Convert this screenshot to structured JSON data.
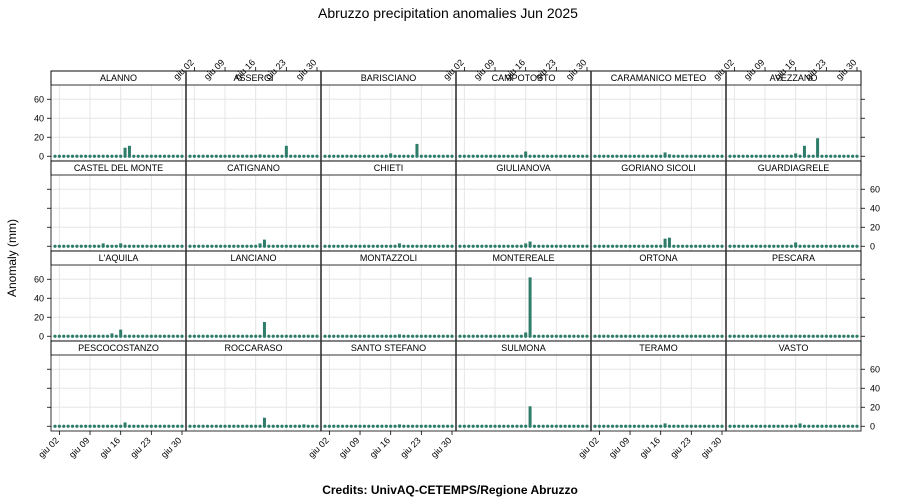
{
  "chart_data": {
    "type": "bar",
    "title": "Abruzzo precipitation anomalies Jun 2025",
    "ylabel": "Anomaly (mm)",
    "credits": "Credits: UnivAQ-CETEMPS/Regione Abruzzo",
    "ylim": [
      -5,
      75
    ],
    "yticks": [
      0,
      20,
      40,
      60
    ],
    "days": 30,
    "xtick_days": [
      2,
      9,
      16,
      23,
      30
    ],
    "xtick_labels": [
      "giu 02",
      "giu 09",
      "giu 16",
      "giu 23",
      "giu 30"
    ],
    "grid": true,
    "layout": {
      "columns": 6,
      "rows": 4
    },
    "colors": {
      "bar": "#2e7d6a",
      "point": "#2e7d6a",
      "strip": "#ffffff",
      "grid": "#e6e6e6"
    },
    "panels": [
      {
        "station": "ALANNO",
        "anomalies": [
          {
            "day": 17,
            "value": 9
          },
          {
            "day": 18,
            "value": 11
          }
        ]
      },
      {
        "station": "ASSERGI",
        "anomalies": [
          {
            "day": 17,
            "value": 2
          },
          {
            "day": 23,
            "value": 11
          }
        ]
      },
      {
        "station": "BARISCIANO",
        "anomalies": [
          {
            "day": 16,
            "value": 3
          },
          {
            "day": 22,
            "value": 13
          }
        ]
      },
      {
        "station": "CAMPOTOSTO",
        "anomalies": [
          {
            "day": 16,
            "value": 5
          }
        ]
      },
      {
        "station": "CARAMANICO METEO",
        "anomalies": [
          {
            "day": 17,
            "value": 4
          },
          {
            "day": 18,
            "value": 2
          }
        ]
      },
      {
        "station": "AVEZZANO",
        "anomalies": [
          {
            "day": 16,
            "value": 3
          },
          {
            "day": 18,
            "value": 11
          },
          {
            "day": 21,
            "value": 19
          }
        ]
      },
      {
        "station": "CASTEL DEL MONTE",
        "anomalies": [
          {
            "day": 12,
            "value": 3
          },
          {
            "day": 16,
            "value": 3
          }
        ]
      },
      {
        "station": "CATIGNANO",
        "anomalies": [
          {
            "day": 17,
            "value": 3
          },
          {
            "day": 18,
            "value": 7
          }
        ]
      },
      {
        "station": "CHIETI",
        "anomalies": [
          {
            "day": 18,
            "value": 3
          }
        ]
      },
      {
        "station": "GIULIANOVA",
        "anomalies": [
          {
            "day": 16,
            "value": 3
          },
          {
            "day": 17,
            "value": 5
          }
        ]
      },
      {
        "station": "GORIANO SICOLI",
        "anomalies": [
          {
            "day": 17,
            "value": 8
          },
          {
            "day": 18,
            "value": 9
          }
        ]
      },
      {
        "station": "GUARDIAGRELE",
        "anomalies": [
          {
            "day": 16,
            "value": 4
          }
        ]
      },
      {
        "station": "L'AQUILA",
        "anomalies": [
          {
            "day": 14,
            "value": 3
          },
          {
            "day": 16,
            "value": 7
          }
        ]
      },
      {
        "station": "LANCIANO",
        "anomalies": [
          {
            "day": 18,
            "value": 15
          }
        ]
      },
      {
        "station": "MONTAZZOLI",
        "anomalies": [
          {
            "day": 18,
            "value": 2
          }
        ]
      },
      {
        "station": "MONTEREALE",
        "anomalies": [
          {
            "day": 16,
            "value": 4
          },
          {
            "day": 17,
            "value": 62
          }
        ]
      },
      {
        "station": "ORTONA",
        "anomalies": []
      },
      {
        "station": "PESCARA",
        "anomalies": []
      },
      {
        "station": "PESCOCOSTANZO",
        "anomalies": [
          {
            "day": 17,
            "value": 4
          }
        ]
      },
      {
        "station": "ROCCARASO",
        "anomalies": [
          {
            "day": 18,
            "value": 9
          },
          {
            "day": 27,
            "value": 2
          }
        ]
      },
      {
        "station": "SANTO STEFANO",
        "anomalies": [
          {
            "day": 18,
            "value": 2
          }
        ]
      },
      {
        "station": "SULMONA",
        "anomalies": [
          {
            "day": 17,
            "value": 21
          },
          {
            "day": 25,
            "value": 1
          }
        ]
      },
      {
        "station": "TERAMO",
        "anomalies": [
          {
            "day": 17,
            "value": 3
          }
        ]
      },
      {
        "station": "VASTO",
        "anomalies": [
          {
            "day": 17,
            "value": 3
          }
        ]
      }
    ]
  }
}
